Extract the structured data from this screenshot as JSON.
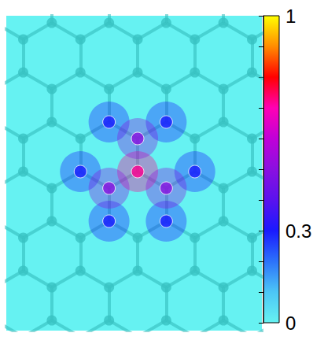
{
  "chart_data": {
    "type": "heatmap",
    "cells": {
      "center": 0.72,
      "shells": [
        0.5,
        0.3
      ]
    },
    "colorbar": {
      "range": [
        0,
        1
      ],
      "ticks": [
        0,
        0.1,
        0.2,
        0.3,
        0.4,
        0.5,
        0.6,
        0.7,
        0.8,
        0.9,
        1
      ],
      "labeled_ticks": [
        0,
        0.3,
        1
      ]
    },
    "tick_labels": false
  }
}
